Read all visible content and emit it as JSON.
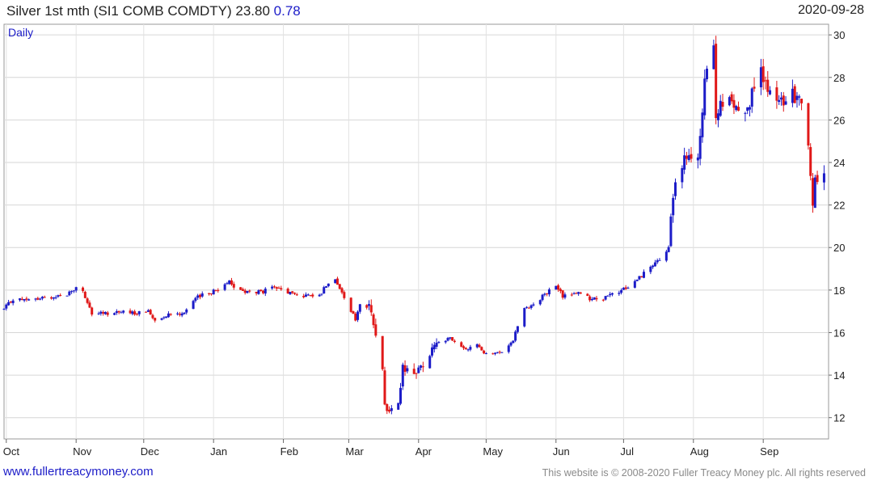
{
  "header": {
    "title": "Silver 1st mth (SI1 COMB COMDTY) 23.80",
    "change": "0.78",
    "date": "2020-09-28"
  },
  "footer": {
    "site": "www.fullertreacymoney.com",
    "copyright": "This website is © 2008-2020 Fuller Treacy Money plc. All rights reserved"
  },
  "chart_data": {
    "type": "candlestick",
    "period_label": "Daily",
    "up_color": "#1c1cc8",
    "down_color": "#e01818",
    "ylim": [
      11,
      30.5
    ],
    "y_ticks": [
      12,
      14,
      16,
      18,
      20,
      22,
      24,
      26,
      28,
      30
    ],
    "x_start": "2019-09-30",
    "x_end": "2020-09-30",
    "x_ticks": [
      {
        "label": "Oct",
        "date": "2019-10-01"
      },
      {
        "label": "Nov",
        "date": "2019-11-01"
      },
      {
        "label": "Dec",
        "date": "2019-12-01"
      },
      {
        "label": "Jan",
        "date": "2020-01-01"
      },
      {
        "label": "Feb",
        "date": "2020-02-01"
      },
      {
        "label": "Mar",
        "date": "2020-03-01"
      },
      {
        "label": "Apr",
        "date": "2020-04-01"
      },
      {
        "label": "May",
        "date": "2020-05-01"
      },
      {
        "label": "Jun",
        "date": "2020-06-01"
      },
      {
        "label": "Jul",
        "date": "2020-07-01"
      },
      {
        "label": "Aug",
        "date": "2020-08-01"
      },
      {
        "label": "Sep",
        "date": "2020-09-01"
      }
    ],
    "close_path": [
      [
        "2019-09-30",
        17.1
      ],
      [
        "2019-10-04",
        17.6
      ],
      [
        "2019-10-10",
        17.5
      ],
      [
        "2019-10-16",
        17.6
      ],
      [
        "2019-10-22",
        17.7
      ],
      [
        "2019-10-28",
        17.8
      ],
      [
        "2019-11-01",
        18.1
      ],
      [
        "2019-11-04",
        18.0
      ],
      [
        "2019-11-06",
        17.3
      ],
      [
        "2019-11-08",
        16.9
      ],
      [
        "2019-11-14",
        16.9
      ],
      [
        "2019-11-20",
        17.0
      ],
      [
        "2019-11-26",
        16.9
      ],
      [
        "2019-12-03",
        17.0
      ],
      [
        "2019-12-06",
        16.6
      ],
      [
        "2019-12-12",
        16.9
      ],
      [
        "2019-12-18",
        16.9
      ],
      [
        "2019-12-24",
        17.6
      ],
      [
        "2019-12-30",
        17.9
      ],
      [
        "2020-01-03",
        18.0
      ],
      [
        "2020-01-08",
        18.5
      ],
      [
        "2020-01-10",
        18.1
      ],
      [
        "2020-01-16",
        17.9
      ],
      [
        "2020-01-22",
        17.9
      ],
      [
        "2020-01-28",
        18.1
      ],
      [
        "2020-01-31",
        18.0
      ],
      [
        "2020-02-06",
        17.8
      ],
      [
        "2020-02-12",
        17.7
      ],
      [
        "2020-02-18",
        17.9
      ],
      [
        "2020-02-21",
        18.4
      ],
      [
        "2020-02-24",
        18.6
      ],
      [
        "2020-02-27",
        17.8
      ],
      [
        "2020-03-02",
        17.0
      ],
      [
        "2020-03-04",
        16.6
      ],
      [
        "2020-03-06",
        17.3
      ],
      [
        "2020-03-10",
        17.2
      ],
      [
        "2020-03-12",
        16.4
      ],
      [
        "2020-03-16",
        14.5
      ],
      [
        "2020-03-17",
        12.8
      ],
      [
        "2020-03-19",
        12.1
      ],
      [
        "2020-03-20",
        12.4
      ],
      [
        "2020-03-23",
        12.6
      ],
      [
        "2020-03-25",
        14.3
      ],
      [
        "2020-03-27",
        14.3
      ],
      [
        "2020-03-31",
        14.1
      ],
      [
        "2020-04-06",
        15.0
      ],
      [
        "2020-04-09",
        15.6
      ],
      [
        "2020-04-15",
        15.7
      ],
      [
        "2020-04-21",
        15.2
      ],
      [
        "2020-04-27",
        15.4
      ],
      [
        "2020-04-30",
        15.1
      ],
      [
        "2020-05-06",
        15.0
      ],
      [
        "2020-05-11",
        15.4
      ],
      [
        "2020-05-13",
        15.7
      ],
      [
        "2020-05-18",
        17.2
      ],
      [
        "2020-05-22",
        17.3
      ],
      [
        "2020-05-27",
        17.8
      ],
      [
        "2020-06-01",
        18.2
      ],
      [
        "2020-06-04",
        17.7
      ],
      [
        "2020-06-10",
        17.9
      ],
      [
        "2020-06-16",
        17.6
      ],
      [
        "2020-06-22",
        17.6
      ],
      [
        "2020-06-29",
        17.9
      ],
      [
        "2020-07-06",
        18.4
      ],
      [
        "2020-07-10",
        18.8
      ],
      [
        "2020-07-16",
        19.3
      ],
      [
        "2020-07-21",
        19.9
      ],
      [
        "2020-07-22",
        21.5
      ],
      [
        "2020-07-24",
        22.8
      ],
      [
        "2020-07-28",
        24.3
      ],
      [
        "2020-07-30",
        24.0
      ],
      [
        "2020-08-03",
        24.3
      ],
      [
        "2020-08-05",
        26.6
      ],
      [
        "2020-08-07",
        28.5
      ],
      [
        "2020-08-10",
        29.2
      ],
      [
        "2020-08-11",
        26.1
      ],
      [
        "2020-08-13",
        26.6
      ],
      [
        "2020-08-17",
        27.0
      ],
      [
        "2020-08-19",
        26.7
      ],
      [
        "2020-08-24",
        26.7
      ],
      [
        "2020-08-27",
        27.1
      ],
      [
        "2020-08-31",
        28.5
      ],
      [
        "2020-09-03",
        27.2
      ],
      [
        "2020-09-08",
        26.8
      ],
      [
        "2020-09-11",
        26.9
      ],
      [
        "2020-09-16",
        27.2
      ],
      [
        "2020-09-18",
        27.0
      ],
      [
        "2020-09-21",
        24.5
      ],
      [
        "2020-09-23",
        22.2
      ],
      [
        "2020-09-24",
        23.0
      ],
      [
        "2020-09-25",
        23.1
      ],
      [
        "2020-09-28",
        23.8
      ]
    ]
  }
}
